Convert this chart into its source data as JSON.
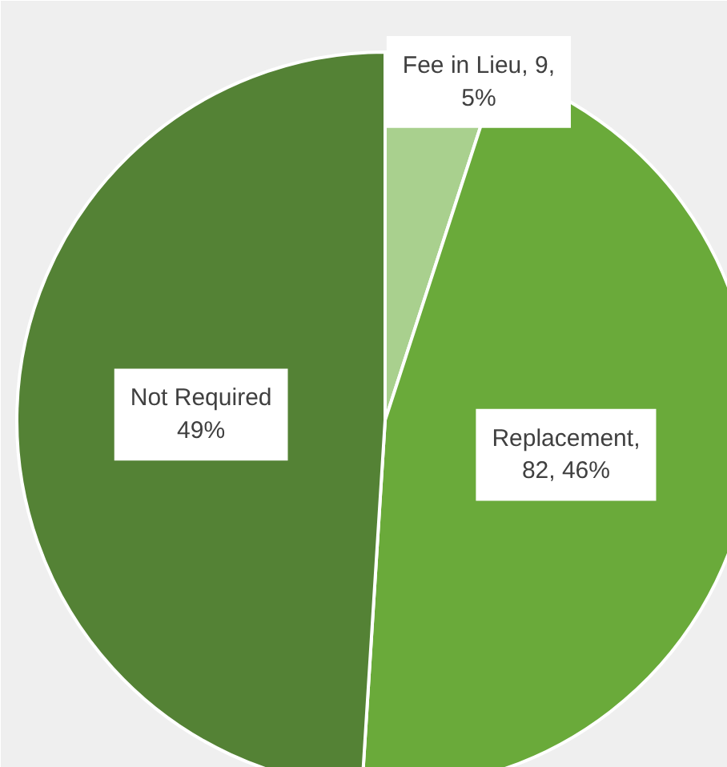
{
  "chart_data": {
    "type": "pie",
    "categories": [
      "Fee in Lieu",
      "Replacement",
      "Not Required"
    ],
    "values": [
      5,
      46,
      49
    ],
    "value_labels": [
      ", 9, 5%",
      ", 82, 46%",
      "49%"
    ],
    "colors": [
      "#a9d08e",
      "#6aaa3a",
      "#548235"
    ]
  }
}
